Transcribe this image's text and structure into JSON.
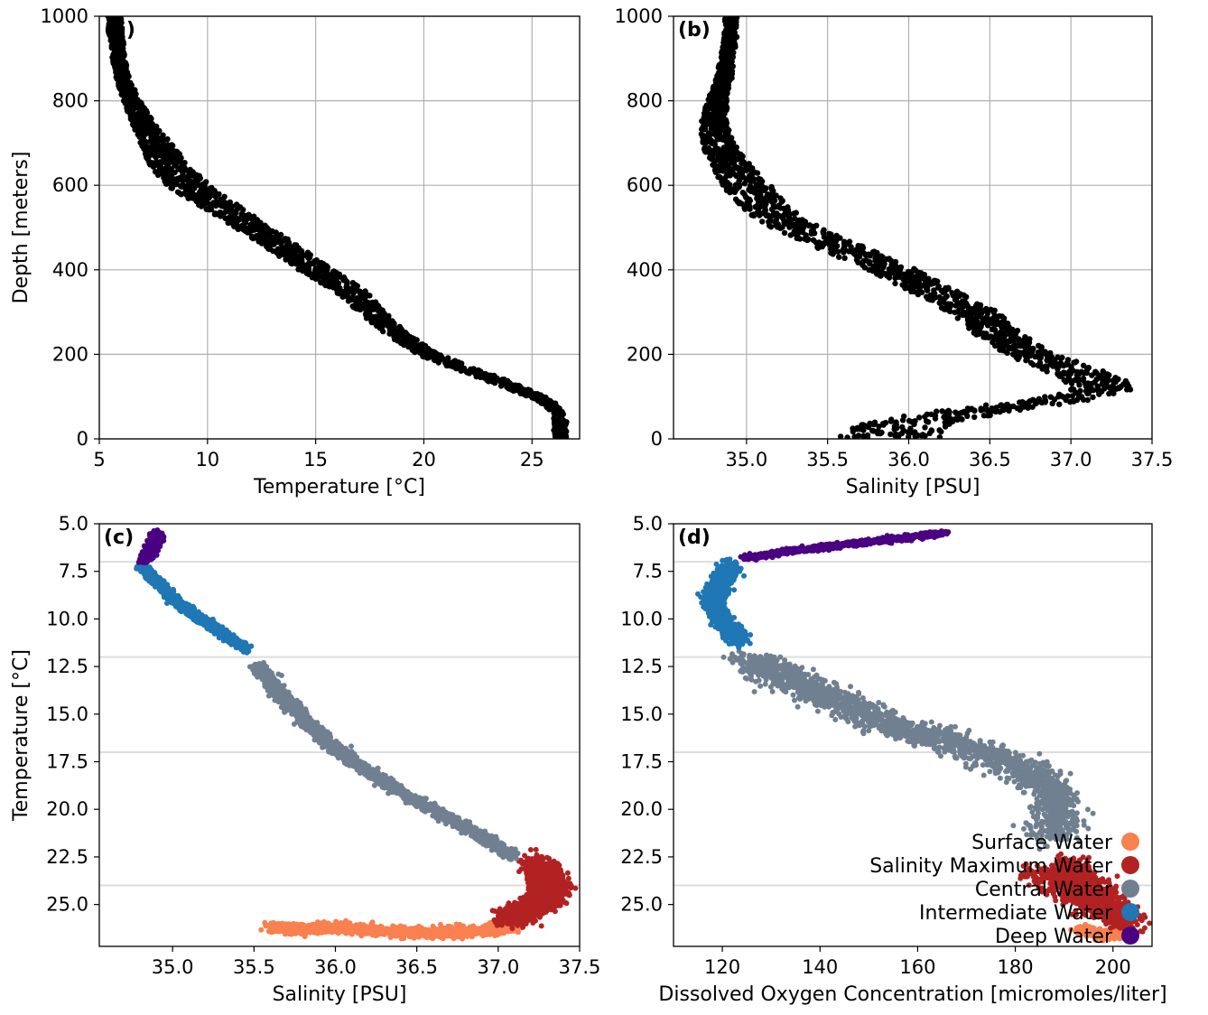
{
  "figure": {
    "colors": {
      "profile": "#000000",
      "surface": "#F9804F",
      "salinity_max": "#B22222",
      "central": "#708090",
      "intermediate": "#1F77B4",
      "deep": "#4B0082",
      "grid": "#b0b0b0",
      "boundary": "#dddddd"
    },
    "legend": {
      "placement": "lower-right of panel (d)",
      "entries": [
        {
          "label": "Surface Water",
          "color": "#F9804F"
        },
        {
          "label": "Salinity Maximum Water",
          "color": "#B22222"
        },
        {
          "label": "Central Water",
          "color": "#708090"
        },
        {
          "label": "Intermediate Water",
          "color": "#1F77B4"
        },
        {
          "label": "Deep Water",
          "color": "#4B0082"
        }
      ]
    },
    "water_mass_boundaries_C": [
      24.0,
      17.0,
      12.0,
      7.0
    ]
  },
  "chart_data": [
    {
      "panel": "(a)",
      "type": "scatter",
      "xlabel": "Temperature [°C]",
      "ylabel": "Depth [meters]",
      "xlim": [
        5,
        27.2
      ],
      "ylim": [
        1000,
        0
      ],
      "xticks": [
        5,
        10,
        15,
        20,
        25
      ],
      "yticks": [
        0,
        200,
        400,
        600,
        800,
        1000
      ],
      "xtick_labels": [
        "5",
        "10",
        "15",
        "20",
        "25"
      ],
      "ytick_labels": [
        "0",
        "200",
        "400",
        "600",
        "800",
        "1000"
      ],
      "grid": true,
      "series": [
        {
          "color": "#000000",
          "profile_depth": [
            0,
            50,
            80,
            100,
            130,
            160,
            200,
            250,
            300,
            350,
            400,
            450,
            500,
            550,
            600,
            650,
            700,
            750,
            800,
            850,
            900,
            950,
            1000
          ],
          "profile_value": [
            26.3,
            26.3,
            25.9,
            25.2,
            23.8,
            22.2,
            20.2,
            18.7,
            17.6,
            16.6,
            15.0,
            13.6,
            12.1,
            10.6,
            9.1,
            8.2,
            7.6,
            7.0,
            6.5,
            6.1,
            5.9,
            5.8,
            5.7
          ],
          "profile_spread": [
            0.3,
            0.3,
            0.3,
            0.4,
            0.5,
            0.5,
            0.5,
            0.5,
            0.6,
            0.7,
            0.8,
            0.8,
            0.8,
            0.9,
            1.0,
            0.9,
            0.7,
            0.5,
            0.4,
            0.3,
            0.3,
            0.3,
            0.3
          ]
        }
      ]
    },
    {
      "panel": "(b)",
      "type": "scatter",
      "xlabel": "Salinity [PSU]",
      "ylabel": "",
      "xlim": [
        34.55,
        37.5
      ],
      "ylim": [
        1000,
        0
      ],
      "xticks": [
        35.0,
        35.5,
        36.0,
        36.5,
        37.0,
        37.5
      ],
      "yticks": [
        0,
        200,
        400,
        600,
        800,
        1000
      ],
      "xtick_labels": [
        "35.0",
        "35.5",
        "36.0",
        "36.5",
        "37.0",
        "37.5"
      ],
      "ytick_labels": [
        "0",
        "200",
        "400",
        "600",
        "800",
        "1000"
      ],
      "grid": true,
      "series": [
        {
          "color": "#000000",
          "profile_depth": [
            0,
            30,
            60,
            90,
            120,
            150,
            200,
            250,
            300,
            350,
            400,
            450,
            500,
            550,
            600,
            650,
            700,
            750,
            800,
            850,
            900,
            950,
            1000
          ],
          "profile_value": [
            35.9,
            35.95,
            36.3,
            36.9,
            37.2,
            37.1,
            36.75,
            36.55,
            36.4,
            36.15,
            35.9,
            35.6,
            35.3,
            35.1,
            35.0,
            34.9,
            34.82,
            34.8,
            34.82,
            34.86,
            34.88,
            34.9,
            34.9
          ],
          "profile_spread": [
            0.35,
            0.3,
            0.25,
            0.2,
            0.2,
            0.2,
            0.15,
            0.15,
            0.15,
            0.15,
            0.15,
            0.15,
            0.15,
            0.15,
            0.15,
            0.12,
            0.1,
            0.08,
            0.06,
            0.05,
            0.04,
            0.04,
            0.04
          ]
        }
      ]
    },
    {
      "panel": "(c)",
      "type": "scatter",
      "xlabel": "Salinity [PSU]",
      "ylabel": "Temperature [°C]",
      "xlim": [
        34.55,
        37.5
      ],
      "ylim": [
        5.0,
        27.2
      ],
      "xticks": [
        35.0,
        35.5,
        36.0,
        36.5,
        37.0,
        37.5
      ],
      "yticks": [
        5.0,
        7.5,
        10.0,
        12.5,
        15.0,
        17.5,
        20.0,
        22.5,
        25.0
      ],
      "xtick_labels": [
        "35.0",
        "35.5",
        "36.0",
        "36.5",
        "37.0",
        "37.5"
      ],
      "ytick_labels": [
        "5.0",
        "7.5",
        "10.0",
        "12.5",
        "15.0",
        "17.5",
        "20.0",
        "22.5",
        "25.0"
      ],
      "grid": false,
      "series": [
        {
          "name": "Surface Water",
          "color": "#F9804F",
          "points": [
            [
              35.6,
              26.2
            ],
            [
              35.8,
              26.3
            ],
            [
              36.0,
              26.2
            ],
            [
              36.3,
              26.4
            ],
            [
              36.6,
              26.5
            ],
            [
              36.9,
              26.4
            ],
            [
              37.1,
              26.2
            ]
          ],
          "spread": [
            0.05,
            0.25
          ]
        },
        {
          "name": "Salinity Maximum Water",
          "color": "#B22222",
          "points": [
            [
              37.05,
              25.8
            ],
            [
              37.2,
              25.3
            ],
            [
              37.3,
              24.7
            ],
            [
              37.35,
              24.1
            ],
            [
              37.3,
              23.4
            ],
            [
              37.2,
              22.8
            ]
          ],
          "spread": [
            0.1,
            0.5
          ]
        },
        {
          "name": "Central Water",
          "color": "#708090",
          "points": [
            [
              37.1,
              22.5
            ],
            [
              36.8,
              20.9
            ],
            [
              36.5,
              19.6
            ],
            [
              36.2,
              18.0
            ],
            [
              35.95,
              16.5
            ],
            [
              35.8,
              15.2
            ],
            [
              35.65,
              13.8
            ],
            [
              35.52,
              12.4
            ]
          ],
          "spread": [
            0.05,
            0.2
          ]
        },
        {
          "name": "Intermediate Water",
          "color": "#1F77B4",
          "points": [
            [
              35.45,
              11.6
            ],
            [
              35.3,
              10.7
            ],
            [
              35.15,
              9.9
            ],
            [
              35.0,
              8.9
            ],
            [
              34.9,
              8.0
            ],
            [
              34.8,
              7.2
            ]
          ],
          "spread": [
            0.03,
            0.2
          ]
        },
        {
          "name": "Deep Water",
          "color": "#4B0082",
          "points": [
            [
              34.82,
              6.9
            ],
            [
              34.86,
              6.5
            ],
            [
              34.88,
              6.1
            ],
            [
              34.9,
              5.8
            ],
            [
              34.9,
              5.6
            ]
          ],
          "spread": [
            0.03,
            0.2
          ]
        }
      ]
    },
    {
      "panel": "(d)",
      "type": "scatter",
      "xlabel": "Dissolved Oxygen Concentration [micromoles/liter]",
      "ylabel": "",
      "xlim": [
        110,
        208
      ],
      "ylim": [
        5.0,
        27.2
      ],
      "xticks": [
        120,
        140,
        160,
        180,
        200
      ],
      "yticks": [
        5.0,
        7.5,
        10.0,
        12.5,
        15.0,
        17.5,
        20.0,
        22.5,
        25.0
      ],
      "xtick_labels": [
        "120",
        "140",
        "160",
        "180",
        "200"
      ],
      "ytick_labels": [
        "5.0",
        "7.5",
        "10.0",
        "12.5",
        "15.0",
        "17.5",
        "20.0",
        "22.5",
        "25.0"
      ],
      "grid": false,
      "series": [
        {
          "name": "Surface Water",
          "color": "#F9804F",
          "points": [
            [
              193,
              26.3
            ],
            [
              198,
              26.6
            ],
            [
              203,
              26.5
            ]
          ],
          "spread": [
            1.5,
            0.2
          ]
        },
        {
          "name": "Salinity Maximum Water",
          "color": "#B22222",
          "points": [
            [
              190,
              22.9
            ],
            [
              194,
              24.0
            ],
            [
              199,
              25.1
            ],
            [
              203,
              25.9
            ],
            [
              183,
              23.3
            ]
          ],
          "spread": [
            4.0,
            0.6
          ]
        },
        {
          "name": "Central Water",
          "color": "#708090",
          "points": [
            [
              188,
              21.5
            ],
            [
              189,
              19.6
            ],
            [
              183,
              18.0
            ],
            [
              170,
              16.8
            ],
            [
              155,
              15.6
            ],
            [
              143,
              14.3
            ],
            [
              133,
              13.0
            ],
            [
              126,
              12.2
            ]
          ],
          "spread": [
            5.0,
            0.6
          ]
        },
        {
          "name": "Intermediate Water",
          "color": "#1F77B4",
          "points": [
            [
              124,
              11.2
            ],
            [
              120,
              10.1
            ],
            [
              118,
              9.1
            ],
            [
              119,
              8.1
            ],
            [
              122,
              7.3
            ]
          ],
          "spread": [
            2.0,
            0.4
          ]
        },
        {
          "name": "Deep Water",
          "color": "#4B0082",
          "points": [
            [
              125,
              6.8
            ],
            [
              135,
              6.4
            ],
            [
              145,
              6.1
            ],
            [
              155,
              5.8
            ],
            [
              165,
              5.5
            ]
          ],
          "spread": [
            1.5,
            0.12
          ]
        }
      ]
    }
  ]
}
